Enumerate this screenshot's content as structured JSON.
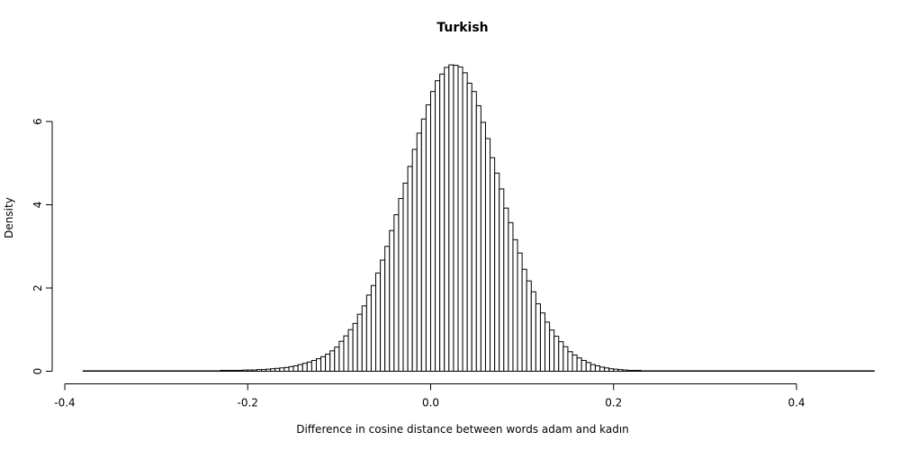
{
  "chart_data": {
    "type": "bar",
    "title": "Turkish",
    "xlabel": "Difference in cosine distance between words adam and kadın",
    "ylabel": "Density",
    "xlim": [
      -0.38,
      0.45
    ],
    "ylim": [
      0,
      7.4
    ],
    "x_ticks": [
      -0.4,
      -0.2,
      0.0,
      0.2,
      0.4
    ],
    "x_tick_labels": [
      "-0.4",
      "-0.2",
      "0.0",
      "0.2",
      "0.4"
    ],
    "y_ticks": [
      0,
      2,
      4,
      6
    ],
    "y_tick_labels": [
      "0",
      "2",
      "4",
      "6"
    ],
    "bin_width": 0.005,
    "bins_start": -0.38,
    "values": [
      0.01,
      0.01,
      0.01,
      0.01,
      0.01,
      0.01,
      0.01,
      0.01,
      0.01,
      0.01,
      0.01,
      0.01,
      0.01,
      0.01,
      0.01,
      0.01,
      0.01,
      0.01,
      0.01,
      0.01,
      0.01,
      0.01,
      0.01,
      0.01,
      0.01,
      0.01,
      0.01,
      0.01,
      0.01,
      0.01,
      0.02,
      0.02,
      0.02,
      0.02,
      0.02,
      0.03,
      0.03,
      0.03,
      0.04,
      0.04,
      0.05,
      0.06,
      0.07,
      0.08,
      0.09,
      0.11,
      0.13,
      0.16,
      0.19,
      0.22,
      0.26,
      0.3,
      0.35,
      0.41,
      0.49,
      0.58,
      0.72,
      0.85,
      1.0,
      1.15,
      1.37,
      1.57,
      1.83,
      2.06,
      2.36,
      2.67,
      3.0,
      3.38,
      3.76,
      4.15,
      4.52,
      4.92,
      5.33,
      5.72,
      6.06,
      6.4,
      6.72,
      6.98,
      7.14,
      7.3,
      7.36,
      7.35,
      7.31,
      7.17,
      6.92,
      6.72,
      6.38,
      5.98,
      5.59,
      5.13,
      4.76,
      4.38,
      3.92,
      3.57,
      3.16,
      2.84,
      2.45,
      2.17,
      1.91,
      1.62,
      1.4,
      1.18,
      0.99,
      0.84,
      0.71,
      0.59,
      0.47,
      0.39,
      0.32,
      0.26,
      0.21,
      0.16,
      0.13,
      0.1,
      0.08,
      0.06,
      0.05,
      0.04,
      0.03,
      0.02,
      0.02,
      0.02,
      0.01,
      0.01,
      0.01,
      0.01,
      0.01,
      0.01,
      0.01,
      0.01,
      0.01,
      0.01,
      0.01,
      0.01,
      0.01,
      0.01,
      0.01,
      0.01,
      0.01,
      0.01,
      0.01,
      0.01,
      0.01,
      0.01,
      0.01,
      0.01,
      0.01,
      0.01,
      0.01,
      0.01,
      0.01,
      0.01,
      0.01,
      0.01,
      0.01,
      0.01,
      0.01,
      0.01,
      0.01,
      0.01,
      0.01,
      0.01,
      0.01,
      0.01,
      0.01,
      0.01,
      0.01,
      0.01,
      0.01,
      0.01,
      0.01,
      0.01,
      0.01
    ],
    "bar_fill": "#ffffff",
    "bar_stroke": "#000000",
    "grid": false,
    "legend": "none"
  }
}
